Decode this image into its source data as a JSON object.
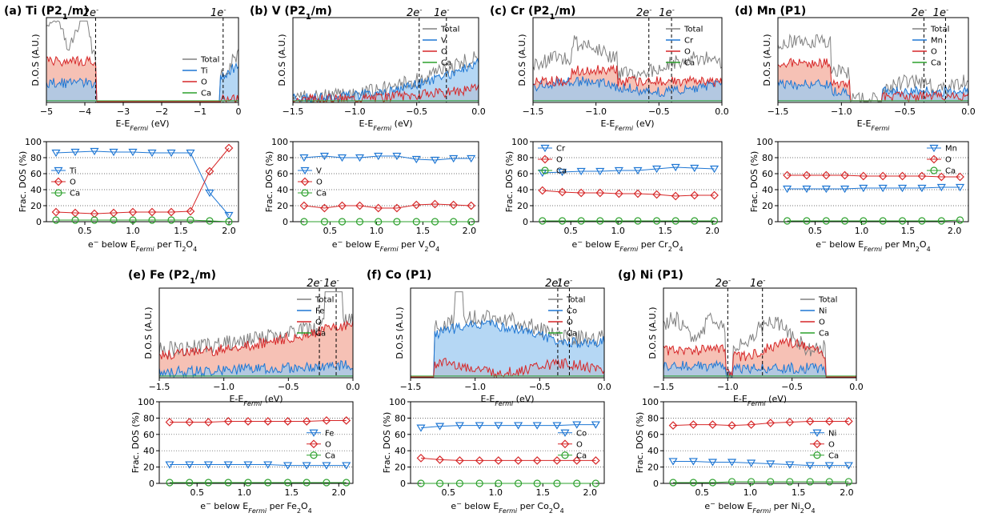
{
  "figure": {
    "panels": [
      {
        "id": "a",
        "title_letter": "(a) ",
        "title_el": "Ti",
        "title_sg": " (P2",
        "title_sg_sub": "1",
        "title_sg_end": "/m)",
        "element": "Ti",
        "formula_sub": "2",
        "formula_tail": "O",
        "dos": {
          "xlabel_main": "E-E",
          "xlabel_sub": "Fermi",
          "xlabel_unit": " (eV)",
          "ylabel": "D.O.S (A.U.)",
          "xlim": [
            -5,
            0
          ],
          "xticks": [
            "-5",
            "-4",
            "-3",
            "-2",
            "-1",
            "0"
          ],
          "legend": [
            "Total",
            "Ti",
            "O",
            "Ca"
          ],
          "legend_size": "normal",
          "lines": [
            {
              "label": "2e",
              "x": -3.72
            },
            {
              "label": "1e",
              "x": -0.4
            }
          ]
        },
        "frac": {
          "ylabel": "Frac. DOS (%)",
          "xlabel_pre": "e",
          "xlabel_mid": " below E",
          "xlabel_sub": "Fermi",
          "xlabel_post": "  per Ti",
          "xlabel_sub2": "2",
          "xlabel_end": "O",
          "xlabel_sub3": "4",
          "xticks": [
            "0.5",
            "1.0",
            "1.5",
            "2.0"
          ],
          "yticks": [
            "0",
            "20",
            "40",
            "60",
            "80",
            "100"
          ],
          "legend": [
            "Ti",
            "O",
            "Ca"
          ],
          "legend_pos": "mid-left"
        }
      },
      {
        "id": "b",
        "title_letter": "(b) ",
        "title_el": "V",
        "title_sg": " (P2",
        "title_sg_sub": "1",
        "title_sg_end": "/m)",
        "dos": {
          "xlabel_main": "E-E",
          "xlabel_sub": "Fermi",
          "xlabel_unit": " (eV)",
          "ylabel": "D.O.S (A.U.)",
          "xlim": [
            -1.5,
            0
          ],
          "xticks": [
            "-1.5",
            "-1.0",
            "-0.5",
            "0.0"
          ],
          "legend": [
            "Total",
            "V",
            "O",
            "Ca"
          ],
          "lines": [
            {
              "label": "2e",
              "x": -0.48
            },
            {
              "label": "1e",
              "x": -0.26
            }
          ]
        },
        "frac": {
          "ylabel": "Frac. DOS (%)",
          "xlabel_pre": "e",
          "xlabel_mid": " below E",
          "xlabel_sub": "Fermi",
          "xlabel_post": "  per V",
          "xlabel_sub2": "2",
          "xlabel_end": "O",
          "xlabel_sub3": "4",
          "xticks": [
            "0.5",
            "1.0",
            "1.5",
            "2.0"
          ],
          "yticks": [
            "0",
            "20",
            "40",
            "60",
            "80",
            "100"
          ],
          "legend": [
            "V",
            "O",
            "Ca"
          ],
          "legend_pos": "mid-left"
        }
      },
      {
        "id": "c",
        "title_letter": "(c) ",
        "title_el": "Cr",
        "title_sg": " (P2",
        "title_sg_sub": "1",
        "title_sg_end": "/m)",
        "dos": {
          "xlabel_main": "E-E",
          "xlabel_sub": "Fermi",
          "xlabel_unit": " (eV)",
          "ylabel": "D.O.S (A.U.)",
          "xlim": [
            -1.5,
            0
          ],
          "xticks": [
            "-1.5",
            "-1.0",
            "-0.5",
            "0.0"
          ],
          "legend": [
            "Total",
            "Cr",
            "O",
            "Ca"
          ],
          "lines": [
            {
              "label": "2e",
              "x": -0.58
            },
            {
              "label": "1e",
              "x": -0.4
            }
          ]
        },
        "frac": {
          "ylabel": "Frac. DOS (%)",
          "xlabel_pre": "e",
          "xlabel_mid": " below E",
          "xlabel_sub": "Fermi",
          "xlabel_post": "  per Cr",
          "xlabel_sub2": "2",
          "xlabel_end": "O",
          "xlabel_sub3": "4",
          "xticks": [
            "0.5",
            "1.0",
            "1.5",
            "2.0"
          ],
          "yticks": [
            "0",
            "20",
            "40",
            "60",
            "80",
            "100"
          ],
          "legend": [
            "Cr",
            "O",
            "Ca"
          ],
          "legend_pos": "top-left"
        }
      },
      {
        "id": "d",
        "title_letter": "(d) ",
        "title_el": "Mn",
        "title_sg": " (P1)",
        "title_sg_sub": "",
        "title_sg_end": "",
        "dos": {
          "xlabel_main": "E-E",
          "xlabel_sub": "Fermi",
          "xlabel_unit": "",
          "ylabel": "D.O.S (A.U.)",
          "xlim": [
            -1.5,
            0
          ],
          "xticks": [
            "-1.5",
            "-1.0",
            "-0.5",
            "0.0"
          ],
          "legend": [
            "Total",
            "Mn",
            "O",
            "Ca"
          ],
          "lines": [
            {
              "label": "2e",
              "x": -0.35
            },
            {
              "label": "1e",
              "x": -0.18
            }
          ]
        },
        "frac": {
          "ylabel": "Frac. DOS (%)",
          "xlabel_pre": "e",
          "xlabel_mid": " below E",
          "xlabel_sub": "Fermi",
          "xlabel_post": "  per Mn",
          "xlabel_sub2": "2",
          "xlabel_end": "O",
          "xlabel_sub3": "4",
          "xticks": [
            "0.5",
            "1.0",
            "1.5",
            "2.0"
          ],
          "yticks": [
            "0",
            "20",
            "40",
            "60",
            "80",
            "100"
          ],
          "legend": [
            "Mn",
            "O",
            "Ca"
          ],
          "legend_pos": "top-right"
        }
      },
      {
        "id": "e",
        "title_letter": "(e) ",
        "title_el": "Fe",
        "title_sg": " (P2",
        "title_sg_sub": "1",
        "title_sg_end": "/m)",
        "dos": {
          "xlabel_main": "E-E",
          "xlabel_sub": "Fermi",
          "xlabel_unit": " (eV)",
          "ylabel": "D.O.S (A.U.)",
          "xlim": [
            -1.5,
            0
          ],
          "xticks": [
            "-1.5",
            "-1.0",
            "-0.5",
            "0.0"
          ],
          "legend": [
            "Total",
            "Fe",
            "O",
            "Ca"
          ],
          "lines": [
            {
              "label": "2e",
              "x": -0.26
            },
            {
              "label": "1e",
              "x": -0.13
            }
          ]
        },
        "frac": {
          "ylabel": "Frac. DOS (%)",
          "xlabel_pre": "e",
          "xlabel_mid": " below E",
          "xlabel_sub": "Fermi",
          "xlabel_post": "  per Fe",
          "xlabel_sub2": "2",
          "xlabel_end": "O",
          "xlabel_sub3": "4",
          "xticks": [
            "0.5",
            "1.0",
            "1.5",
            "2.0"
          ],
          "yticks": [
            "0",
            "20",
            "40",
            "60",
            "80",
            "100"
          ],
          "legend": [
            "Fe",
            "O",
            "Ca"
          ],
          "legend_pos": "lower-right"
        }
      },
      {
        "id": "f",
        "title_letter": "(f) ",
        "title_el": "Co",
        "title_sg": " (P1)",
        "title_sg_sub": "",
        "title_sg_end": "",
        "dos": {
          "xlabel_main": "E-E",
          "xlabel_sub": "Fermi",
          "xlabel_unit": " (eV)",
          "ylabel": "D.O.S (A.U.)",
          "xlim": [
            -1.5,
            0
          ],
          "xticks": [
            "-1.5",
            "-1.0",
            "-0.5",
            "0.0"
          ],
          "legend": [
            "Total",
            "Co",
            "O",
            "Ca"
          ],
          "lines": [
            {
              "label": "2e",
              "x": -0.36
            },
            {
              "label": "1e",
              "x": -0.27
            }
          ]
        },
        "frac": {
          "ylabel": "Frac. DOS (%)",
          "xlabel_pre": "e",
          "xlabel_mid": " below E",
          "xlabel_sub": "Fermi",
          "xlabel_post": "  per Co",
          "xlabel_sub2": "2",
          "xlabel_end": "O",
          "xlabel_sub3": "4",
          "xticks": [
            "0.5",
            "1.0",
            "1.5",
            "2.0"
          ],
          "yticks": [
            "0",
            "20",
            "40",
            "60",
            "80",
            "100"
          ],
          "legend": [
            "Co",
            "O",
            "Ca"
          ],
          "legend_pos": "lower-right"
        }
      },
      {
        "id": "g",
        "title_letter": "(g) ",
        "title_el": "Ni",
        "title_sg": " (P1)",
        "title_sg_sub": "",
        "title_sg_end": "",
        "dos": {
          "xlabel_main": "E-E",
          "xlabel_sub": "Fermi",
          "xlabel_unit": " (eV)",
          "ylabel": "D.O.S (A.U.)",
          "xlim": [
            -1.5,
            0
          ],
          "xticks": [
            "-1.5",
            "-1.0",
            "-0.5",
            "0.0"
          ],
          "legend": [
            "Total",
            "Ni",
            "O",
            "Ca"
          ],
          "lines": [
            {
              "label": "2e",
              "x": -1.0
            },
            {
              "label": "1e",
              "x": -0.73
            }
          ]
        },
        "frac": {
          "ylabel": "Frac. DOS (%)",
          "xlabel_pre": "e",
          "xlabel_mid": " below E",
          "xlabel_sub": "Fermi",
          "xlabel_post": "  per Ni",
          "xlabel_sub2": "2",
          "xlabel_end": "O",
          "xlabel_sub3": "4",
          "xticks": [
            "0.5",
            "1.0",
            "1.5",
            "2.0"
          ],
          "yticks": [
            "0",
            "20",
            "40",
            "60",
            "80",
            "100"
          ],
          "legend": [
            "Ni",
            "O",
            "Ca"
          ],
          "legend_pos": "lower-right"
        }
      }
    ],
    "colors": {
      "total": "#808080",
      "tm": "#1f77d4",
      "tm_fill": "#9ccaf0",
      "o": "#d62728",
      "o_fill": "#f4b6a8",
      "ca": "#2ca02c"
    }
  },
  "chart_data": [
    {
      "type": "line",
      "panel": "a",
      "x": [
        0.2,
        0.4,
        0.6,
        0.8,
        1.0,
        1.2,
        1.4,
        1.6,
        1.8,
        2.0
      ],
      "series": [
        {
          "name": "Ti",
          "values": [
            86,
            87,
            88,
            87,
            87,
            86,
            86,
            86,
            36,
            8
          ]
        },
        {
          "name": "O",
          "values": [
            12,
            11,
            10,
            11,
            12,
            12,
            12,
            13,
            63,
            92
          ]
        },
        {
          "name": "Ca",
          "values": [
            2,
            2,
            2,
            2,
            2,
            2,
            2,
            2,
            1,
            0
          ]
        }
      ],
      "ylim": [
        0,
        100
      ],
      "xlim": [
        0.1,
        2.1
      ]
    },
    {
      "type": "line",
      "panel": "b",
      "x": [
        0.22,
        0.44,
        0.63,
        0.82,
        1.02,
        1.22,
        1.43,
        1.63,
        1.83,
        2.02
      ],
      "series": [
        {
          "name": "V",
          "values": [
            80,
            82,
            80,
            80,
            82,
            82,
            78,
            77,
            79,
            79
          ]
        },
        {
          "name": "O",
          "values": [
            20,
            17,
            20,
            20,
            17,
            17,
            21,
            22,
            21,
            20
          ]
        },
        {
          "name": "Ca",
          "values": [
            0,
            0,
            0,
            0,
            0,
            0,
            0,
            0,
            0,
            0
          ]
        }
      ],
      "ylim": [
        0,
        100
      ],
      "xlim": [
        0.1,
        2.1
      ]
    },
    {
      "type": "line",
      "panel": "c",
      "x": [
        0.2,
        0.41,
        0.61,
        0.81,
        1.01,
        1.21,
        1.41,
        1.61,
        1.81,
        2.02
      ],
      "series": [
        {
          "name": "Cr",
          "values": [
            61,
            62,
            63,
            63,
            64,
            64,
            66,
            68,
            67,
            66
          ]
        },
        {
          "name": "O",
          "values": [
            39,
            37,
            36,
            36,
            35,
            35,
            34,
            32,
            33,
            33
          ]
        },
        {
          "name": "Ca",
          "values": [
            1,
            1,
            1,
            1,
            1,
            1,
            1,
            1,
            1,
            1
          ]
        }
      ],
      "ylim": [
        0,
        100
      ],
      "xlim": [
        0.1,
        2.1
      ]
    },
    {
      "type": "line",
      "panel": "d",
      "x": [
        0.2,
        0.41,
        0.62,
        0.82,
        1.02,
        1.23,
        1.44,
        1.65,
        1.86,
        2.06
      ],
      "series": [
        {
          "name": "Mn",
          "values": [
            41,
            41,
            41,
            41,
            42,
            42,
            42,
            42,
            43,
            43
          ]
        },
        {
          "name": "O",
          "values": [
            58,
            58,
            58,
            58,
            57,
            57,
            57,
            57,
            56,
            56
          ]
        },
        {
          "name": "Ca",
          "values": [
            1,
            1,
            1,
            1,
            1,
            1,
            1,
            1,
            1,
            2
          ]
        }
      ],
      "ylim": [
        0,
        100
      ],
      "xlim": [
        0.1,
        2.15
      ]
    },
    {
      "type": "line",
      "panel": "e",
      "x": [
        0.21,
        0.42,
        0.62,
        0.83,
        1.04,
        1.25,
        1.46,
        1.66,
        1.87,
        2.08
      ],
      "series": [
        {
          "name": "Fe",
          "values": [
            23,
            23,
            23,
            23,
            23,
            23,
            22,
            22,
            22,
            22
          ]
        },
        {
          "name": "O",
          "values": [
            75,
            75,
            75,
            76,
            76,
            76,
            76,
            76,
            77,
            77
          ]
        },
        {
          "name": "Ca",
          "values": [
            1,
            1,
            1,
            1,
            1,
            1,
            1,
            1,
            1,
            1
          ]
        }
      ],
      "ylim": [
        0,
        100
      ],
      "xlim": [
        0.1,
        2.15
      ]
    },
    {
      "type": "line",
      "panel": "f",
      "x": [
        0.21,
        0.41,
        0.62,
        0.83,
        1.03,
        1.24,
        1.44,
        1.65,
        1.86,
        2.06
      ],
      "series": [
        {
          "name": "Co",
          "values": [
            68,
            70,
            71,
            71,
            71,
            71,
            71,
            71,
            72,
            72
          ]
        },
        {
          "name": "O",
          "values": [
            31,
            29,
            28,
            28,
            28,
            28,
            28,
            28,
            28,
            28
          ]
        },
        {
          "name": "Ca",
          "values": [
            0,
            0,
            0,
            0,
            0,
            0,
            0,
            0,
            0,
            0
          ]
        }
      ],
      "ylim": [
        0,
        100
      ],
      "xlim": [
        0.1,
        2.15
      ]
    },
    {
      "type": "line",
      "panel": "g",
      "x": [
        0.2,
        0.41,
        0.61,
        0.81,
        1.01,
        1.21,
        1.41,
        1.62,
        1.82,
        2.02
      ],
      "series": [
        {
          "name": "Ni",
          "values": [
            27,
            27,
            26,
            26,
            25,
            24,
            23,
            22,
            22,
            22
          ]
        },
        {
          "name": "O",
          "values": [
            71,
            72,
            72,
            71,
            72,
            74,
            75,
            76,
            76,
            76
          ]
        },
        {
          "name": "Ca",
          "values": [
            1,
            1,
            1,
            2,
            2,
            2,
            2,
            2,
            2,
            2
          ]
        }
      ],
      "ylim": [
        0,
        100
      ],
      "xlim": [
        0.1,
        2.1
      ]
    }
  ]
}
